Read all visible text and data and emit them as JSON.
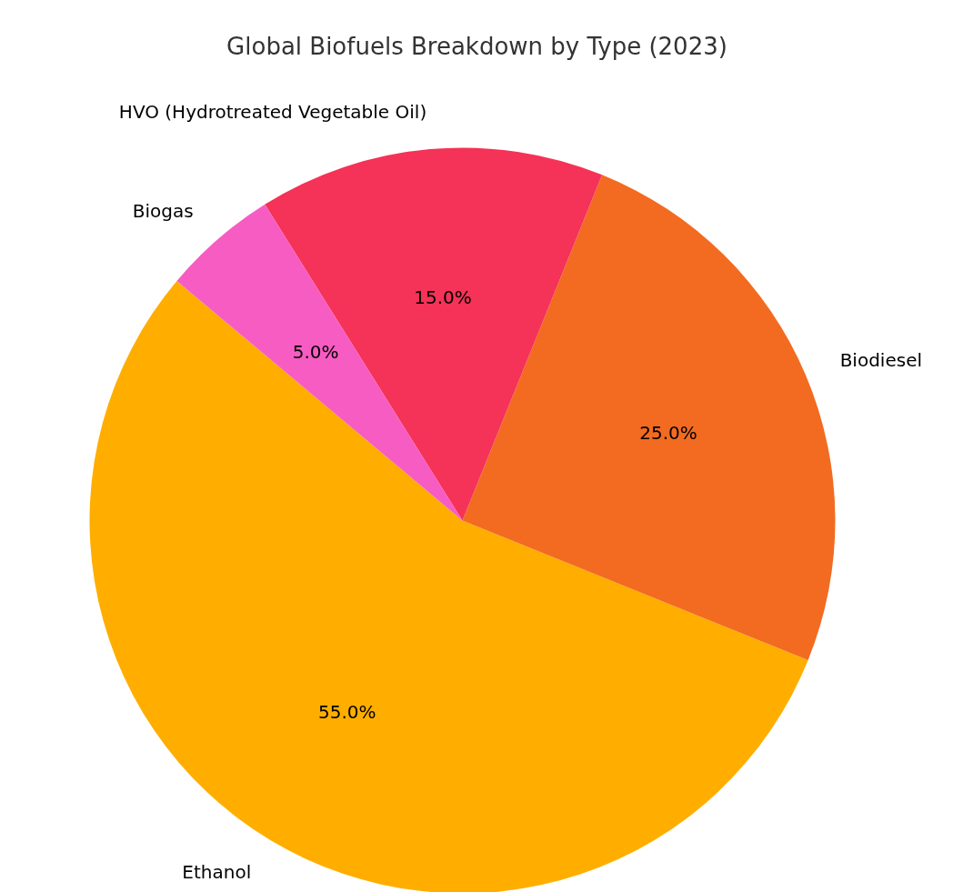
{
  "chart_data": {
    "type": "pie",
    "title": "Global Biofuels Breakdown by Type (2023)",
    "categories": [
      "Ethanol",
      "Biodiesel",
      "HVO (Hydrotreated Vegetable Oil)",
      "Biogas"
    ],
    "values": [
      55,
      25,
      15,
      5
    ],
    "colors": [
      "#ffae00",
      "#f26b21",
      "#f53257",
      "#f75cc2"
    ],
    "value_labels": [
      "55.0%",
      "25.0%",
      "15.0%",
      "5.0%"
    ]
  }
}
